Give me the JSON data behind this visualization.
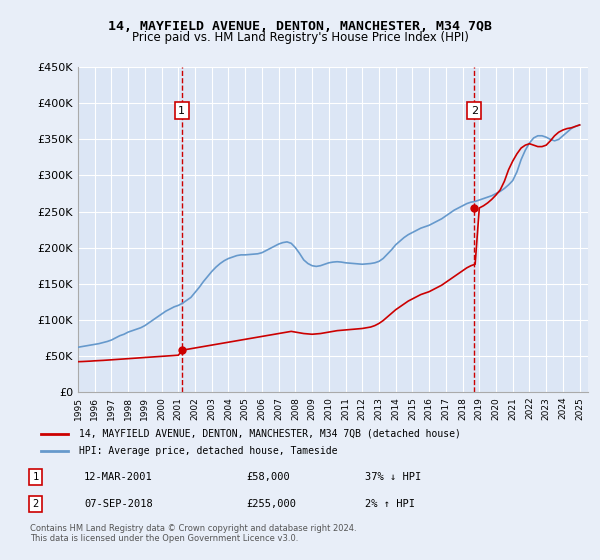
{
  "title": "14, MAYFIELD AVENUE, DENTON, MANCHESTER, M34 7QB",
  "subtitle": "Price paid vs. HM Land Registry's House Price Index (HPI)",
  "legend_line1": "14, MAYFIELD AVENUE, DENTON, MANCHESTER, M34 7QB (detached house)",
  "legend_line2": "HPI: Average price, detached house, Tameside",
  "annotation1_label": "1",
  "annotation1_date": "12-MAR-2001",
  "annotation1_price": "£58,000",
  "annotation1_pct": "37% ↓ HPI",
  "annotation2_label": "2",
  "annotation2_date": "07-SEP-2018",
  "annotation2_price": "£255,000",
  "annotation2_pct": "2% ↑ HPI",
  "footnote": "Contains HM Land Registry data © Crown copyright and database right 2024.\nThis data is licensed under the Open Government Licence v3.0.",
  "xlabel": "",
  "ylabel": "",
  "ylim": [
    0,
    450000
  ],
  "yticks": [
    0,
    50000,
    100000,
    150000,
    200000,
    250000,
    300000,
    350000,
    400000,
    450000
  ],
  "ytick_labels": [
    "£0",
    "£50K",
    "£100K",
    "£150K",
    "£200K",
    "£250K",
    "£300K",
    "£350K",
    "£400K",
    "£450K"
  ],
  "xlim_start": 1995.0,
  "xlim_end": 2025.5,
  "sale1_x": 2001.2,
  "sale1_y": 58000,
  "sale2_x": 2018.7,
  "sale2_y": 255000,
  "background_color": "#e8eef8",
  "plot_bg_color": "#dce6f5",
  "grid_color": "#ffffff",
  "red_line_color": "#cc0000",
  "blue_line_color": "#6699cc",
  "vline_color": "#cc0000",
  "hpi_years": [
    1995,
    1995.25,
    1995.5,
    1995.75,
    1996,
    1996.25,
    1996.5,
    1996.75,
    1997,
    1997.25,
    1997.5,
    1997.75,
    1998,
    1998.25,
    1998.5,
    1998.75,
    1999,
    1999.25,
    1999.5,
    1999.75,
    2000,
    2000.25,
    2000.5,
    2000.75,
    2001,
    2001.25,
    2001.5,
    2001.75,
    2002,
    2002.25,
    2002.5,
    2002.75,
    2003,
    2003.25,
    2003.5,
    2003.75,
    2004,
    2004.25,
    2004.5,
    2004.75,
    2005,
    2005.25,
    2005.5,
    2005.75,
    2006,
    2006.25,
    2006.5,
    2006.75,
    2007,
    2007.25,
    2007.5,
    2007.75,
    2008,
    2008.25,
    2008.5,
    2008.75,
    2009,
    2009.25,
    2009.5,
    2009.75,
    2010,
    2010.25,
    2010.5,
    2010.75,
    2011,
    2011.25,
    2011.5,
    2011.75,
    2012,
    2012.25,
    2012.5,
    2012.75,
    2013,
    2013.25,
    2013.5,
    2013.75,
    2014,
    2014.25,
    2014.5,
    2014.75,
    2015,
    2015.25,
    2015.5,
    2015.75,
    2016,
    2016.25,
    2016.5,
    2016.75,
    2017,
    2017.25,
    2017.5,
    2017.75,
    2018,
    2018.25,
    2018.5,
    2018.75,
    2019,
    2019.25,
    2019.5,
    2019.75,
    2020,
    2020.25,
    2020.5,
    2020.75,
    2021,
    2021.25,
    2021.5,
    2021.75,
    2022,
    2022.25,
    2022.5,
    2022.75,
    2023,
    2023.25,
    2023.5,
    2023.75,
    2024,
    2024.25,
    2024.5,
    2024.75,
    2025
  ],
  "hpi_values": [
    62000,
    63000,
    64000,
    65000,
    66000,
    67000,
    68500,
    70000,
    72000,
    75000,
    78000,
    80000,
    83000,
    85000,
    87000,
    89000,
    92000,
    96000,
    100000,
    104000,
    108000,
    112000,
    115000,
    118000,
    120000,
    123000,
    127000,
    131000,
    138000,
    145000,
    153000,
    160000,
    167000,
    173000,
    178000,
    182000,
    185000,
    187000,
    189000,
    190000,
    190000,
    190500,
    191000,
    191500,
    193000,
    196000,
    199000,
    202000,
    205000,
    207000,
    208000,
    206000,
    200000,
    192000,
    183000,
    178000,
    175000,
    174000,
    175000,
    177000,
    179000,
    180000,
    180500,
    180000,
    179000,
    178500,
    178000,
    177500,
    177000,
    177500,
    178000,
    179000,
    181000,
    185000,
    191000,
    197000,
    204000,
    209000,
    214000,
    218000,
    221000,
    224000,
    227000,
    229000,
    231000,
    234000,
    237000,
    240000,
    244000,
    248000,
    252000,
    255000,
    258000,
    261000,
    263000,
    264000,
    266000,
    268000,
    270000,
    272000,
    275000,
    278000,
    282000,
    287000,
    293000,
    305000,
    322000,
    335000,
    345000,
    352000,
    355000,
    355000,
    353000,
    350000,
    348000,
    350000,
    355000,
    360000,
    365000,
    368000,
    370000
  ],
  "price_years": [
    1995.0,
    1995.25,
    1995.5,
    1995.75,
    1996.0,
    1996.25,
    1996.5,
    1996.75,
    1997.0,
    1997.25,
    1997.5,
    1997.75,
    1998.0,
    1998.25,
    1998.5,
    1998.75,
    1999.0,
    1999.25,
    1999.5,
    1999.75,
    2000.0,
    2000.25,
    2000.5,
    2000.75,
    2001.0,
    2001.25,
    2001.5,
    2001.75,
    2002.0,
    2002.25,
    2002.5,
    2002.75,
    2003.0,
    2003.25,
    2003.5,
    2003.75,
    2004.0,
    2004.25,
    2004.5,
    2004.75,
    2005.0,
    2005.25,
    2005.5,
    2005.75,
    2006.0,
    2006.25,
    2006.5,
    2006.75,
    2007.0,
    2007.25,
    2007.5,
    2007.75,
    2008.0,
    2008.25,
    2008.5,
    2008.75,
    2009.0,
    2009.25,
    2009.5,
    2009.75,
    2010.0,
    2010.25,
    2010.5,
    2010.75,
    2011.0,
    2011.25,
    2011.5,
    2011.75,
    2012.0,
    2012.25,
    2012.5,
    2012.75,
    2013.0,
    2013.25,
    2013.5,
    2013.75,
    2014.0,
    2014.25,
    2014.5,
    2014.75,
    2015.0,
    2015.25,
    2015.5,
    2015.75,
    2016.0,
    2016.25,
    2016.5,
    2016.75,
    2017.0,
    2017.25,
    2017.5,
    2017.75,
    2018.0,
    2018.25,
    2018.5,
    2018.75,
    2019.0,
    2019.25,
    2019.5,
    2019.75,
    2020.0,
    2020.25,
    2020.5,
    2020.75,
    2021.0,
    2021.25,
    2021.5,
    2021.75,
    2022.0,
    2022.25,
    2022.5,
    2022.75,
    2023.0,
    2023.25,
    2023.5,
    2023.75,
    2024.0,
    2024.25,
    2024.5,
    2024.75,
    2025.0
  ],
  "price_values": [
    42000,
    42200,
    42500,
    42800,
    43200,
    43500,
    43800,
    44200,
    44600,
    45000,
    45400,
    45800,
    46200,
    46600,
    47000,
    47400,
    47800,
    48200,
    48600,
    49000,
    49400,
    49800,
    50200,
    50600,
    51000,
    58000,
    59000,
    60000,
    61000,
    62000,
    63000,
    64000,
    65000,
    66000,
    67000,
    68000,
    69000,
    70000,
    71000,
    72000,
    73000,
    74000,
    75000,
    76000,
    77000,
    78000,
    79000,
    80000,
    81000,
    82000,
    83000,
    84000,
    83000,
    82000,
    81000,
    80500,
    80000,
    80500,
    81000,
    82000,
    83000,
    84000,
    85000,
    85500,
    86000,
    86500,
    87000,
    87500,
    88000,
    89000,
    90000,
    92000,
    95000,
    99000,
    104000,
    109000,
    114000,
    118000,
    122000,
    126000,
    129000,
    132000,
    135000,
    137000,
    139000,
    142000,
    145000,
    148000,
    152000,
    156000,
    160000,
    164000,
    168000,
    172000,
    175000,
    177000,
    255000,
    258000,
    262000,
    267000,
    273000,
    280000,
    292000,
    308000,
    320000,
    330000,
    338000,
    342000,
    344000,
    342000,
    340000,
    340000,
    342000,
    348000,
    355000,
    360000,
    363000,
    365000,
    366000,
    368000,
    370000
  ]
}
